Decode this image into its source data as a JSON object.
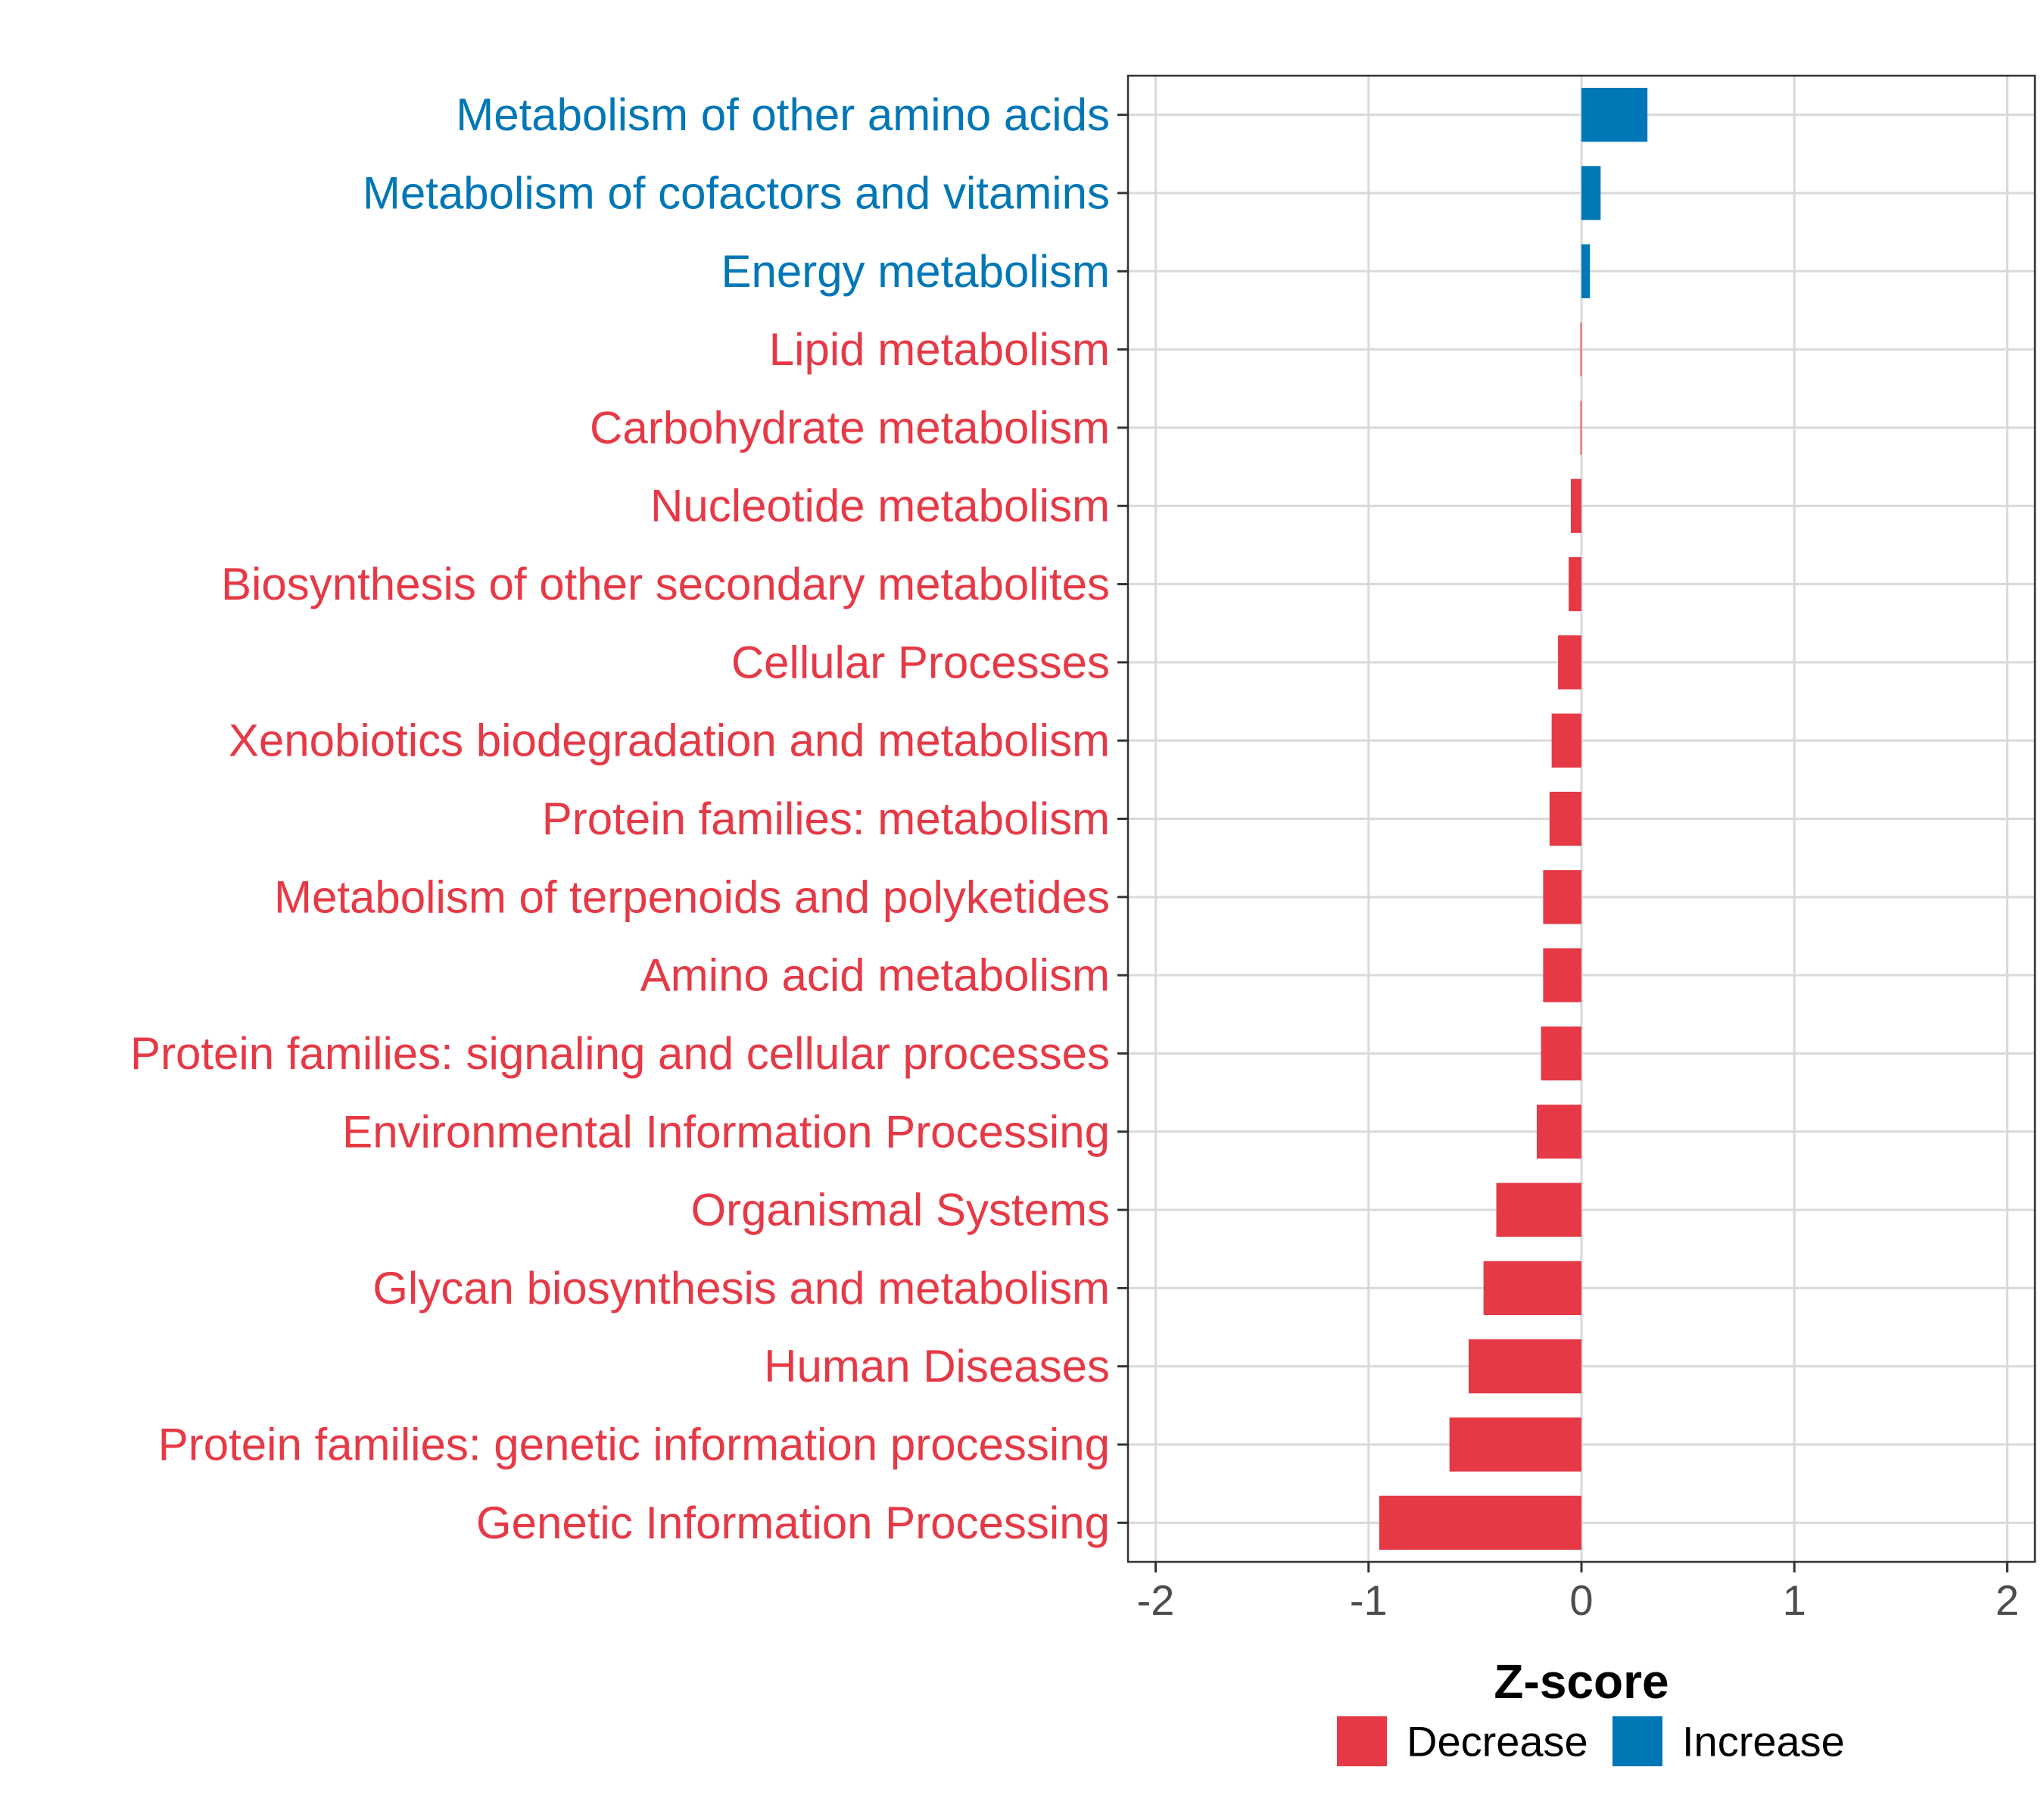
{
  "chart_data": {
    "type": "bar",
    "orientation": "horizontal",
    "title": "",
    "xlabel": "Z-score",
    "ylabel": "",
    "xlim": [
      -2.13,
      2.13
    ],
    "x_ticks": [
      "-2",
      "-1",
      "0",
      "1",
      "2"
    ],
    "x_tick_values": [
      -2,
      -1,
      0,
      1,
      2
    ],
    "grid": true,
    "legend_position": "bottom",
    "colors": {
      "Decrease": "#E63946",
      "Increase": "#0077B6"
    },
    "legend": [
      {
        "name": "Decrease",
        "label": "Decrease"
      },
      {
        "name": "Increase",
        "label": "Increase"
      }
    ],
    "categories": [
      "Metabolism of other amino acids",
      "Metabolism of cofactors and vitamins",
      "Energy metabolism",
      "Lipid metabolism",
      "Carbohydrate metabolism",
      "Nucleotide metabolism",
      "Biosynthesis of other secondary metabolites",
      "Cellular Processes",
      "Xenobiotics biodegradation and metabolism",
      "Protein families: metabolism",
      "Metabolism of terpenoids and polyketides",
      "Amino acid metabolism",
      "Protein families: signaling and cellular processes",
      "Environmental Information Processing",
      "Organismal Systems",
      "Glycan biosynthesis and metabolism",
      "Human Diseases",
      "Protein families: genetic information processing",
      "Genetic Information Processing"
    ],
    "values": [
      0.31,
      0.09,
      0.04,
      -0.005,
      -0.005,
      -0.05,
      -0.06,
      -0.11,
      -0.14,
      -0.15,
      -0.18,
      -0.18,
      -0.19,
      -0.21,
      -0.4,
      -0.46,
      -0.53,
      -0.62,
      -0.95
    ],
    "groups": [
      "Increase",
      "Increase",
      "Increase",
      "Decrease",
      "Decrease",
      "Decrease",
      "Decrease",
      "Decrease",
      "Decrease",
      "Decrease",
      "Decrease",
      "Decrease",
      "Decrease",
      "Decrease",
      "Decrease",
      "Decrease",
      "Decrease",
      "Decrease",
      "Decrease"
    ]
  }
}
